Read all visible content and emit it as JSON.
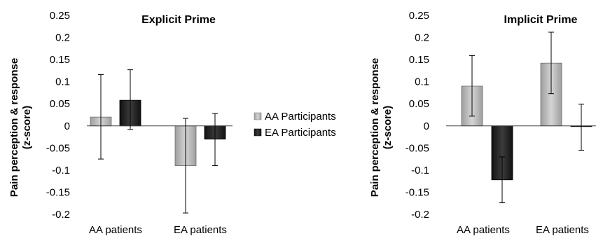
{
  "legend": [
    {
      "label": "AA Participants",
      "color": "#b8b8b8"
    },
    {
      "label": "EA Participants",
      "color": "#2a2a2a"
    }
  ],
  "chart_data": [
    {
      "type": "bar",
      "title": "Explicit Prime",
      "ylabel_line1": "Pain perception & response",
      "ylabel_line2": "(z-score)",
      "categories": [
        "AA patients",
        "EA patients"
      ],
      "ylim": [
        -0.2,
        0.25
      ],
      "yticks": [
        "0.25",
        "0.2",
        "0.15",
        "0.1",
        "0.05",
        "0",
        "-0.05",
        "-0.1",
        "-0.15",
        "-0.2"
      ],
      "series": [
        {
          "name": "AA Participants",
          "values": [
            0.02,
            -0.09
          ],
          "err_low": [
            -0.075,
            -0.197
          ],
          "err_high": [
            0.116,
            0.017
          ]
        },
        {
          "name": "EA Participants",
          "values": [
            0.058,
            -0.03
          ],
          "err_low": [
            -0.008,
            -0.09
          ],
          "err_high": [
            0.127,
            0.028
          ]
        }
      ]
    },
    {
      "type": "bar",
      "title": "Implicit Prime",
      "ylabel_line1": "Pain perception & response",
      "ylabel_line2": "(z-score)",
      "categories": [
        "AA patients",
        "EA patients"
      ],
      "ylim": [
        -0.2,
        0.25
      ],
      "yticks": [
        "0.25",
        "0.2",
        "0.15",
        "0.1",
        "0.05",
        "0",
        "-0.05",
        "-0.1",
        "-0.15",
        "-0.2"
      ],
      "series": [
        {
          "name": "AA Participants",
          "values": [
            0.09,
            0.142
          ],
          "err_low": [
            0.022,
            0.073
          ],
          "err_high": [
            0.159,
            0.212
          ]
        },
        {
          "name": "EA Participants",
          "values": [
            -0.122,
            0.0
          ],
          "err_low": [
            -0.174,
            -0.055
          ],
          "err_high": [
            -0.07,
            0.049
          ]
        }
      ]
    }
  ]
}
